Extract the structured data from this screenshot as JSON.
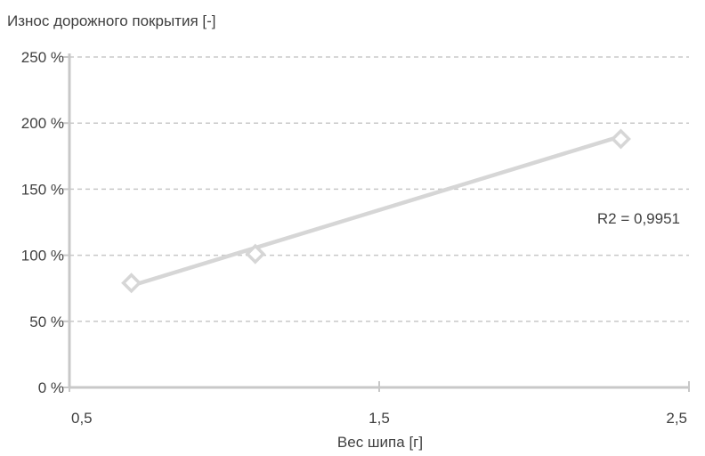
{
  "chart_data": {
    "type": "scatter",
    "title": "",
    "ylabel": "Износ дорожного покрытия [-]",
    "xlabel": "Вес шипа [г]",
    "xlim": [
      0.5,
      2.5
    ],
    "ylim": [
      0,
      250
    ],
    "x_ticks": [
      "0,5",
      "1,5",
      "2,5"
    ],
    "x_tick_values": [
      0.5,
      1.5,
      2.5
    ],
    "y_ticks": [
      "0 %",
      "50 %",
      "100 %",
      "150 %",
      "200 %",
      "250 %"
    ],
    "y_tick_values": [
      0,
      50,
      100,
      150,
      200,
      250
    ],
    "grid": {
      "horizontal": true,
      "style": "dashed"
    },
    "series": [
      {
        "marker": "diamond",
        "points": [
          {
            "x": 0.7,
            "y": 79
          },
          {
            "x": 1.1,
            "y": 101
          },
          {
            "x": 2.28,
            "y": 188
          }
        ]
      }
    ],
    "trendline": {
      "type": "linear",
      "from": {
        "x": 0.7,
        "y": 77
      },
      "to": {
        "x": 2.28,
        "y": 190
      },
      "label": "R2 = 0,9951"
    },
    "colors": {
      "axis": "#c8c8c8",
      "grid": "#c8c8c8",
      "series": "#d6d6d6",
      "text": "#404040"
    }
  }
}
